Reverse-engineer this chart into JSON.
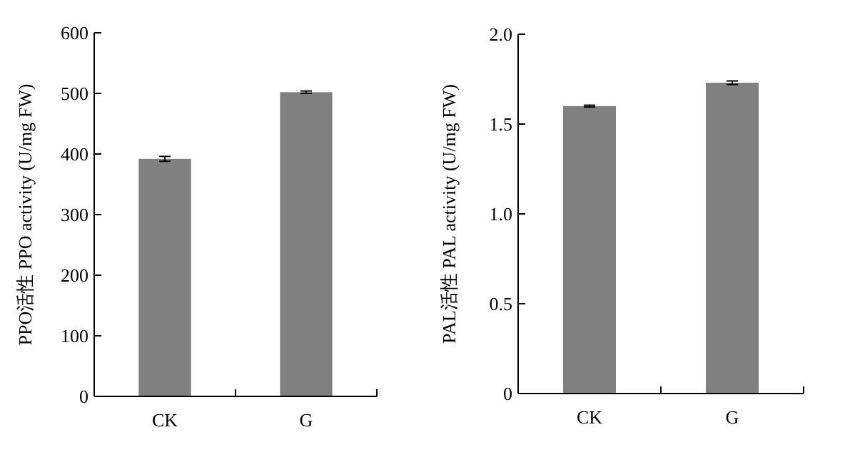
{
  "chart_data": [
    {
      "type": "bar",
      "ylabel": "PPO活性 PPO activity (U/mg FW)",
      "categories": [
        "CK",
        "G"
      ],
      "color": "#808080",
      "values": [
        392,
        502
      ],
      "errors": [
        4,
        2
      ],
      "ylim": [
        0,
        600
      ],
      "yticks": [
        0,
        100,
        200,
        300,
        400,
        500,
        600
      ]
    },
    {
      "type": "bar",
      "ylabel": "PAL活性 PAL activity (U/mg FW)",
      "categories": [
        "CK",
        "G"
      ],
      "color": "#808080",
      "values": [
        1.6,
        1.73
      ],
      "errors": [
        0.005,
        0.01
      ],
      "ylim": [
        0,
        2
      ],
      "yticks": [
        0,
        {
          "value": 0.5,
          "label": "0.5"
        },
        {
          "value": 1,
          "label": "1.0"
        },
        {
          "value": 1.5,
          "label": "1.5"
        },
        {
          "value": 2,
          "label": "2.0"
        }
      ]
    }
  ]
}
